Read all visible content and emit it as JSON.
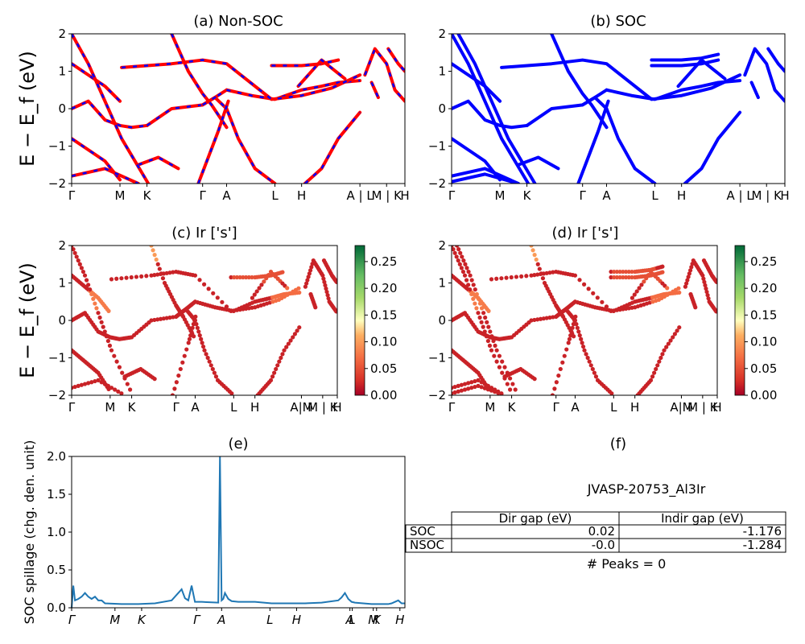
{
  "figure": {
    "ylabel_main": "E − E_f (eV)",
    "ylabel_spillage": "SOC spillage (chg. den. unit)"
  },
  "kpath": {
    "labels": [
      "Γ",
      "M",
      "K",
      "Γ",
      "A",
      "L",
      "H",
      "A | L",
      "M | K",
      "H"
    ],
    "positions": [
      0,
      0.145,
      0.226,
      0.393,
      0.465,
      0.61,
      0.69,
      0.865,
      0.945,
      1.0
    ]
  },
  "colors": {
    "nonsoc": "#ff0000",
    "nonsoc_dash": "#0000ff",
    "soc": "#0000ff",
    "spillage": "#1f77b4"
  },
  "chart_data": [
    {
      "type": "line",
      "title": "(a) Non-SOC",
      "ylabel": "E − E_f (eV)",
      "ylim": [
        -2,
        2
      ],
      "yticks": [
        "−2",
        "−1",
        "0",
        "1",
        "2"
      ],
      "xticks": [
        "Γ",
        "M",
        "K",
        "Γ",
        "A",
        "L",
        "H",
        "A | L",
        "M | K",
        "H"
      ],
      "series": [
        {
          "x": [
            0,
            0.05,
            0.1,
            0.145,
            0.18,
            0.226
          ],
          "y": [
            0.0,
            0.2,
            -0.3,
            -0.45,
            -0.5,
            -0.45
          ]
        },
        {
          "x": [
            0.226,
            0.3,
            0.393,
            0.43,
            0.465
          ],
          "y": [
            -0.45,
            0.0,
            0.1,
            0.3,
            0.5
          ]
        },
        {
          "x": [
            0.465,
            0.54,
            0.61,
            0.69,
            0.75,
            0.8,
            0.865
          ],
          "y": [
            0.5,
            0.35,
            0.25,
            0.5,
            0.6,
            0.7,
            0.75
          ]
        },
        {
          "x": [
            0,
            0.05,
            0.1,
            0.145
          ],
          "y": [
            1.2,
            0.9,
            0.6,
            0.2
          ]
        },
        {
          "x": [
            0.15,
            0.3,
            0.393,
            0.465,
            0.6,
            0.69,
            0.78,
            0.865
          ],
          "y": [
            1.1,
            1.2,
            1.3,
            1.2,
            0.25,
            0.35,
            0.55,
            0.9
          ]
        },
        {
          "x": [
            0.6,
            0.69,
            0.75,
            0.8
          ],
          "y": [
            1.15,
            1.15,
            1.2,
            1.3
          ]
        },
        {
          "x": [
            0.68,
            0.75,
            0.82
          ],
          "y": [
            0.6,
            1.3,
            0.8
          ]
        },
        {
          "x": [
            0.393,
            0.43,
            0.465,
            0.5,
            0.55,
            0.61
          ],
          "y": [
            0.1,
            0.3,
            0.0,
            -0.8,
            -1.6,
            -2.0
          ]
        },
        {
          "x": [
            0.7,
            0.75,
            0.8,
            0.865
          ],
          "y": [
            -2.0,
            -1.6,
            -0.8,
            -0.1
          ]
        },
        {
          "x": [
            0,
            0.05,
            0.1,
            0.145
          ],
          "y": [
            -0.8,
            -1.1,
            -1.4,
            -1.9
          ]
        },
        {
          "x": [
            0.0,
            0.1,
            0.2
          ],
          "y": [
            -1.8,
            -1.6,
            -2.0
          ]
        },
        {
          "x": [
            0.2,
            0.26,
            0.32
          ],
          "y": [
            -1.5,
            -1.3,
            -1.6
          ]
        },
        {
          "x": [
            0.0,
            0.05,
            0.1,
            0.15,
            0.23
          ],
          "y": [
            2.0,
            1.2,
            0.2,
            -0.8,
            -2.0
          ]
        },
        {
          "x": [
            0.3,
            0.35,
            0.393,
            0.42,
            0.465
          ],
          "y": [
            2.0,
            1.0,
            0.4,
            0.1,
            -0.5
          ]
        },
        {
          "x": [
            0.38,
            0.44,
            0.47
          ],
          "y": [
            -2.0,
            -0.6,
            0.2
          ]
        },
        {
          "x": [
            0.88,
            0.91,
            0.945,
            0.97,
            1.0
          ],
          "y": [
            0.9,
            1.6,
            1.2,
            0.5,
            0.2
          ]
        },
        {
          "x": [
            0.95,
            0.98,
            1.0
          ],
          "y": [
            1.6,
            1.2,
            1.0
          ]
        },
        {
          "x": [
            0.9,
            0.92
          ],
          "y": [
            0.7,
            0.3
          ]
        }
      ]
    },
    {
      "type": "line",
      "title": "(b) SOC",
      "ylim": [
        -2,
        2
      ],
      "yticks": [
        "−2",
        "−1",
        "0",
        "1",
        "2"
      ],
      "xticks": [
        "Γ",
        "M",
        "K",
        "Γ",
        "A",
        "L",
        "H",
        "A | L",
        "M | K",
        "H"
      ],
      "series": [
        {
          "x": [
            0,
            0.05,
            0.1,
            0.145,
            0.18,
            0.226
          ],
          "y": [
            0.0,
            0.2,
            -0.3,
            -0.45,
            -0.5,
            -0.45
          ]
        },
        {
          "x": [
            0.226,
            0.3,
            0.393,
            0.43,
            0.465
          ],
          "y": [
            -0.45,
            0.0,
            0.1,
            0.3,
            0.5
          ]
        },
        {
          "x": [
            0.465,
            0.54,
            0.61,
            0.69,
            0.75,
            0.8,
            0.865
          ],
          "y": [
            0.5,
            0.35,
            0.25,
            0.5,
            0.6,
            0.7,
            0.75
          ]
        },
        {
          "x": [
            0,
            0.05,
            0.1,
            0.145
          ],
          "y": [
            1.2,
            0.9,
            0.6,
            0.2
          ]
        },
        {
          "x": [
            0.15,
            0.3,
            0.393,
            0.465,
            0.6,
            0.69,
            0.78,
            0.865
          ],
          "y": [
            1.1,
            1.2,
            1.3,
            1.2,
            0.25,
            0.35,
            0.55,
            0.9
          ]
        },
        {
          "x": [
            0.6,
            0.69,
            0.75,
            0.8
          ],
          "y": [
            1.15,
            1.15,
            1.2,
            1.3
          ]
        },
        {
          "x": [
            0.6,
            0.69,
            0.75,
            0.8
          ],
          "y": [
            1.3,
            1.3,
            1.35,
            1.45
          ]
        },
        {
          "x": [
            0.68,
            0.75,
            0.82
          ],
          "y": [
            0.6,
            1.3,
            0.8
          ]
        },
        {
          "x": [
            0.393,
            0.43,
            0.465,
            0.5,
            0.55,
            0.61
          ],
          "y": [
            0.1,
            0.3,
            0.0,
            -0.8,
            -1.6,
            -2.0
          ]
        },
        {
          "x": [
            0.7,
            0.75,
            0.8,
            0.865
          ],
          "y": [
            -2.0,
            -1.6,
            -0.8,
            -0.1
          ]
        },
        {
          "x": [
            0,
            0.05,
            0.1,
            0.145
          ],
          "y": [
            -0.8,
            -1.1,
            -1.4,
            -1.9
          ]
        },
        {
          "x": [
            0.0,
            0.1,
            0.2
          ],
          "y": [
            -1.8,
            -1.6,
            -2.0
          ]
        },
        {
          "x": [
            0.0,
            0.1,
            0.2
          ],
          "y": [
            -1.95,
            -1.75,
            -2.0
          ]
        },
        {
          "x": [
            0.2,
            0.26,
            0.32
          ],
          "y": [
            -1.5,
            -1.3,
            -1.6
          ]
        },
        {
          "x": [
            0.0,
            0.05,
            0.1,
            0.15,
            0.23
          ],
          "y": [
            2.0,
            1.2,
            0.2,
            -0.8,
            -2.0
          ]
        },
        {
          "x": [
            0.02,
            0.07,
            0.12,
            0.17,
            0.25
          ],
          "y": [
            2.0,
            1.2,
            0.2,
            -0.8,
            -2.0
          ]
        },
        {
          "x": [
            0.3,
            0.35,
            0.393,
            0.42,
            0.465
          ],
          "y": [
            2.0,
            1.0,
            0.4,
            0.1,
            -0.5
          ]
        },
        {
          "x": [
            0.38,
            0.44,
            0.47
          ],
          "y": [
            -2.0,
            -0.6,
            0.2
          ]
        },
        {
          "x": [
            0.88,
            0.91,
            0.945,
            0.97,
            1.0
          ],
          "y": [
            0.9,
            1.6,
            1.2,
            0.5,
            0.2
          ]
        },
        {
          "x": [
            0.95,
            0.98,
            1.0
          ],
          "y": [
            1.6,
            1.2,
            1.0
          ]
        },
        {
          "x": [
            0.9,
            0.92
          ],
          "y": [
            0.7,
            0.3
          ]
        }
      ]
    },
    {
      "type": "scatter",
      "title": "(c)  Ir ['s']",
      "ylabel": "E − E_f (eV)",
      "ylim": [
        -2,
        2
      ],
      "yticks": [
        "−2",
        "−1",
        "0",
        "1",
        "2"
      ],
      "xticks": [
        "Γ",
        "M",
        "K",
        "Γ",
        "A",
        "L",
        "H",
        "A|M",
        "M | K",
        "H"
      ],
      "colorbar": {
        "ticks": [
          "0.00",
          "0.05",
          "0.10",
          "0.15",
          "0.20",
          "0.25"
        ],
        "range": [
          0,
          0.28
        ]
      }
    },
    {
      "type": "scatter",
      "title": "(d) Ir ['s']",
      "ylim": [
        -2,
        2
      ],
      "yticks": [
        "−2",
        "−1",
        "0",
        "1",
        "2"
      ],
      "xticks": [
        "Γ",
        "M",
        "K",
        "Γ",
        "A",
        "L",
        "H",
        "A|M",
        "M | K",
        "H"
      ],
      "colorbar": {
        "ticks": [
          "0.00",
          "0.05",
          "0.10",
          "0.15",
          "0.20",
          "0.25"
        ],
        "range": [
          0,
          0.28
        ]
      }
    },
    {
      "type": "line",
      "title": "(e)",
      "ylabel": "SOC spillage (chg. den. unit)",
      "ylim": [
        0,
        2.05
      ],
      "yticks": [
        "0.0",
        "0.5",
        "1.0",
        "1.5",
        "2.0"
      ],
      "xticks": [
        "Γ",
        "M",
        "K",
        "Γ",
        "A",
        "L",
        "H",
        "A",
        "L",
        "M",
        "K",
        "H"
      ],
      "xtick_positions": [
        0,
        0.13,
        0.21,
        0.375,
        0.45,
        0.595,
        0.675,
        0.835,
        0.842,
        0.905,
        0.915,
        0.985
      ],
      "x": [
        0,
        0.005,
        0.01,
        0.02,
        0.03,
        0.04,
        0.05,
        0.06,
        0.07,
        0.08,
        0.09,
        0.1,
        0.15,
        0.2,
        0.25,
        0.3,
        0.33,
        0.34,
        0.35,
        0.36,
        0.37,
        0.38,
        0.39,
        0.44,
        0.445,
        0.45,
        0.455,
        0.46,
        0.47,
        0.48,
        0.5,
        0.55,
        0.6,
        0.65,
        0.7,
        0.75,
        0.8,
        0.81,
        0.82,
        0.83,
        0.84,
        0.85,
        0.9,
        0.95,
        0.96,
        0.97,
        0.98,
        0.99,
        1.0
      ],
      "y": [
        0.0,
        0.3,
        0.1,
        0.12,
        0.15,
        0.2,
        0.15,
        0.12,
        0.15,
        0.1,
        0.1,
        0.06,
        0.05,
        0.05,
        0.06,
        0.1,
        0.25,
        0.13,
        0.1,
        0.3,
        0.08,
        0.08,
        0.08,
        0.07,
        2.05,
        0.1,
        0.12,
        0.2,
        0.12,
        0.09,
        0.08,
        0.08,
        0.06,
        0.06,
        0.06,
        0.07,
        0.1,
        0.14,
        0.2,
        0.12,
        0.08,
        0.07,
        0.05,
        0.05,
        0.06,
        0.08,
        0.1,
        0.06,
        0.06
      ]
    },
    {
      "type": "table",
      "title": "(f)",
      "subtitle": "JVASP-20753_Al3Ir",
      "columns": [
        "",
        "Dir gap (eV)",
        "Indir gap (eV)"
      ],
      "rows": [
        [
          "SOC",
          "0.02",
          "-1.176"
        ],
        [
          "NSOC",
          "-0.0",
          "-1.284"
        ]
      ],
      "footer": "# Peaks = 0"
    }
  ]
}
